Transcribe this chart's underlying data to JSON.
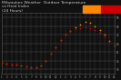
{
  "title": "Milwaukee Weather  Outdoor Temperature\nvs Heat Index\n(24 Hours)",
  "title_fontsize": 3.2,
  "title_color": "#cccccc",
  "background_color": "#111111",
  "plot_background": "#111111",
  "xlim": [
    0,
    23
  ],
  "ylim": [
    25,
    95
  ],
  "yticks": [
    30,
    40,
    50,
    60,
    70,
    80,
    90
  ],
  "ytick_labels": [
    "30",
    "40",
    "50",
    "60",
    "70",
    "80",
    "90"
  ],
  "xtick_labels": [
    "1",
    "2",
    "3",
    "4",
    "5",
    "6",
    "7",
    "8",
    "9",
    "10",
    "11",
    "12",
    "1",
    "2",
    "3",
    "4",
    "5",
    "6",
    "7",
    "8",
    "9",
    "10",
    "11",
    "12"
  ],
  "grid_color": "#555555",
  "outdoor_temp": [
    38,
    37,
    36,
    36,
    35,
    34,
    33,
    33,
    35,
    40,
    48,
    56,
    64,
    70,
    74,
    76,
    77,
    78,
    77,
    75,
    72,
    68,
    62,
    58
  ],
  "heat_index": [
    38,
    37,
    36,
    36,
    35,
    34,
    33,
    33,
    35,
    40,
    48,
    56,
    64,
    70,
    74,
    78,
    82,
    85,
    84,
    80,
    75,
    70,
    63,
    58
  ],
  "temp_color": "#cc0000",
  "heat_color": "#ff8800",
  "marker_size": 1.2,
  "tick_color": "#aaaaaa",
  "tick_fontsize": 2.0,
  "legend_orange": "#ff8800",
  "legend_red": "#cc0000",
  "vgrid_positions": [
    0,
    1,
    2,
    3,
    4,
    5,
    6,
    7,
    8,
    9,
    10,
    11,
    12,
    13,
    14,
    15,
    16,
    17,
    18,
    19,
    20,
    21,
    22,
    23
  ]
}
